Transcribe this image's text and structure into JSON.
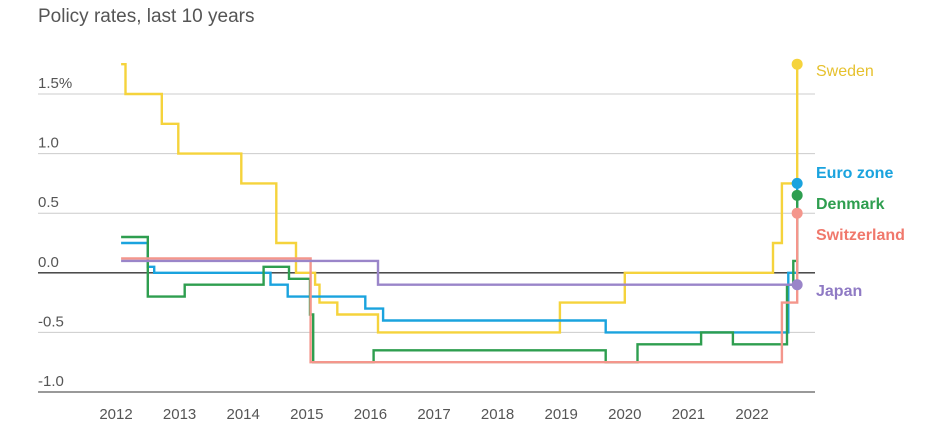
{
  "chart_data": {
    "type": "line",
    "step": true,
    "title": "Policy rates, last 10 years",
    "xlabel": "",
    "ylabel": "",
    "xlim": [
      2011.95,
      2022.9
    ],
    "ylim": [
      -1.0,
      1.75
    ],
    "x_ticks": [
      2012,
      2013,
      2014,
      2015,
      2016,
      2017,
      2018,
      2019,
      2020,
      2021,
      2022
    ],
    "x_tick_labels": [
      "2012",
      "2013",
      "2014",
      "2015",
      "2016",
      "2017",
      "2018",
      "2019",
      "2020",
      "2021",
      "2022"
    ],
    "y_ticks": [
      1.5,
      1.0,
      0.5,
      0.0,
      -0.5,
      -1.0
    ],
    "y_tick_labels": [
      "1.5%",
      "1.0",
      "0.5",
      "0.0",
      "-0.5",
      "-1.0"
    ],
    "grid": true,
    "legend": "right-end labels",
    "series": [
      {
        "name": "Sweden",
        "color": "#f5d33c",
        "label_color": "#e6c12e",
        "points": [
          [
            2012.08,
            1.75
          ],
          [
            2012.15,
            1.5
          ],
          [
            2012.72,
            1.25
          ],
          [
            2012.98,
            1.0
          ],
          [
            2013.97,
            0.75
          ],
          [
            2014.52,
            0.25
          ],
          [
            2014.83,
            0.0
          ],
          [
            2015.13,
            -0.1
          ],
          [
            2015.2,
            -0.25
          ],
          [
            2015.48,
            -0.35
          ],
          [
            2016.12,
            -0.5
          ],
          [
            2018.98,
            -0.25
          ],
          [
            2020.0,
            0.0
          ],
          [
            2022.33,
            0.25
          ],
          [
            2022.47,
            0.75
          ],
          [
            2022.71,
            1.75
          ]
        ]
      },
      {
        "name": "Euro zone",
        "color": "#1aa3de",
        "label_color": "#1aa3de",
        "points": [
          [
            2012.08,
            0.25
          ],
          [
            2012.5,
            0.05
          ],
          [
            2012.6,
            0.0
          ],
          [
            2014.43,
            -0.1
          ],
          [
            2014.7,
            -0.2
          ],
          [
            2015.92,
            -0.3
          ],
          [
            2016.2,
            -0.4
          ],
          [
            2019.7,
            -0.5
          ],
          [
            2022.57,
            0.0
          ],
          [
            2022.71,
            0.75
          ]
        ]
      },
      {
        "name": "Denmark",
        "color": "#2e9e4f",
        "label_color": "#2e9e4f",
        "points": [
          [
            2012.08,
            0.3
          ],
          [
            2012.5,
            -0.2
          ],
          [
            2013.08,
            -0.1
          ],
          [
            2014.32,
            0.05
          ],
          [
            2014.72,
            -0.05
          ],
          [
            2015.05,
            -0.35
          ],
          [
            2015.1,
            -0.75
          ],
          [
            2016.05,
            -0.65
          ],
          [
            2019.7,
            -0.75
          ],
          [
            2020.2,
            -0.6
          ],
          [
            2021.2,
            -0.5
          ],
          [
            2021.7,
            -0.6
          ],
          [
            2022.55,
            -0.1
          ],
          [
            2022.65,
            0.1
          ],
          [
            2022.71,
            0.65
          ]
        ]
      },
      {
        "name": "Switzerland",
        "color": "#f4968c",
        "label_color": "#f0786c",
        "points": [
          [
            2012.08,
            0.12
          ],
          [
            2015.06,
            -0.75
          ],
          [
            2022.47,
            -0.25
          ],
          [
            2022.71,
            0.5
          ]
        ]
      },
      {
        "name": "Japan",
        "color": "#9a85c9",
        "label_color": "#8f7ac4",
        "points": [
          [
            2012.08,
            0.1
          ],
          [
            2016.12,
            -0.1
          ],
          [
            2022.71,
            -0.1
          ]
        ]
      }
    ]
  }
}
